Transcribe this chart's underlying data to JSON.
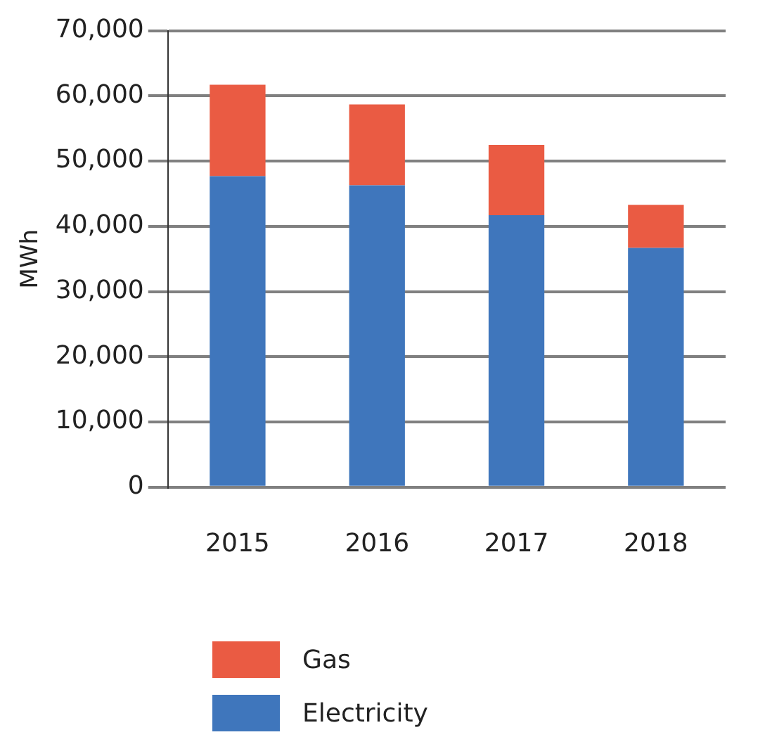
{
  "chart_data": {
    "type": "bar",
    "ylabel": "MWh",
    "categories": [
      "2015",
      "2016",
      "2017",
      "2018"
    ],
    "stacked": true,
    "series": [
      {
        "name": "Electricity",
        "color": "#3f76bc",
        "values": [
          47700,
          46300,
          41700,
          36700
        ]
      },
      {
        "name": "Gas",
        "color": "#ea5b43",
        "values": [
          14000,
          12400,
          10800,
          6600
        ]
      }
    ],
    "ylim": [
      0,
      70000
    ],
    "yticks": [
      0,
      {
        "value": 10000,
        "label": "10,000"
      },
      {
        "value": 20000,
        "label": "20,000"
      },
      {
        "value": 30000,
        "label": "30,000"
      },
      {
        "value": 40000,
        "label": "40,000"
      },
      {
        "value": 50000,
        "label": "50,000"
      },
      {
        "value": 60000,
        "label": "60,000"
      },
      {
        "value": 70000,
        "label": "70,000"
      }
    ],
    "grid": "y",
    "legend": "bottom left"
  }
}
